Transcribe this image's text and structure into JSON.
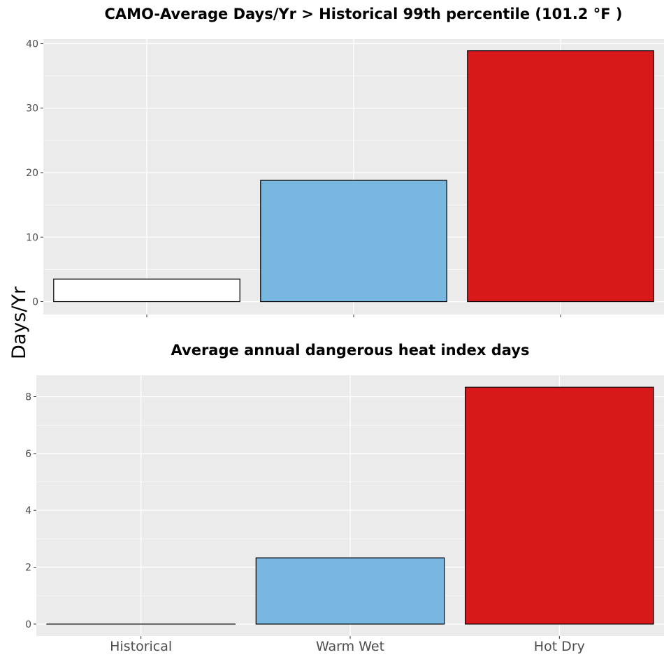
{
  "y_axis_label": "Days/Yr",
  "colors": {
    "panel_bg": "#ebebeb",
    "grid": "#ffffff",
    "tick_text": "#4d4d4d",
    "bar_outline": "#000000"
  },
  "chart_data": [
    {
      "type": "bar",
      "title": "CAMO-Average Days/Yr > Historical 99th percentile (101.2 °F )",
      "categories": [
        "Historical",
        "Warm Wet",
        "Hot Dry"
      ],
      "show_category_labels": false,
      "values": [
        3.5,
        18.8,
        38.9
      ],
      "colors": [
        "#ffffff",
        "#77b7e0",
        "#d7191c"
      ],
      "ylabel": "Days/Yr",
      "ylim": [
        -2,
        40.7
      ],
      "yticks": [
        0,
        10,
        20,
        30,
        40
      ],
      "ytick_labels": [
        "0",
        "10",
        "20",
        "30",
        "40"
      ],
      "grid": true,
      "legend": "none"
    },
    {
      "type": "bar",
      "title": "Average annual dangerous heat index days",
      "categories": [
        "Historical",
        "Warm Wet",
        "Hot Dry"
      ],
      "show_category_labels": true,
      "values": [
        0,
        2.33,
        8.33
      ],
      "colors": [
        "#ffffff",
        "#77b7e0",
        "#d7191c"
      ],
      "ylabel": "Days/Yr",
      "ylim": [
        -0.42,
        8.75
      ],
      "yticks": [
        0,
        2,
        4,
        6,
        8
      ],
      "ytick_labels": [
        "0",
        "2",
        "4",
        "6",
        "8"
      ],
      "grid": true,
      "legend": "none"
    }
  ]
}
